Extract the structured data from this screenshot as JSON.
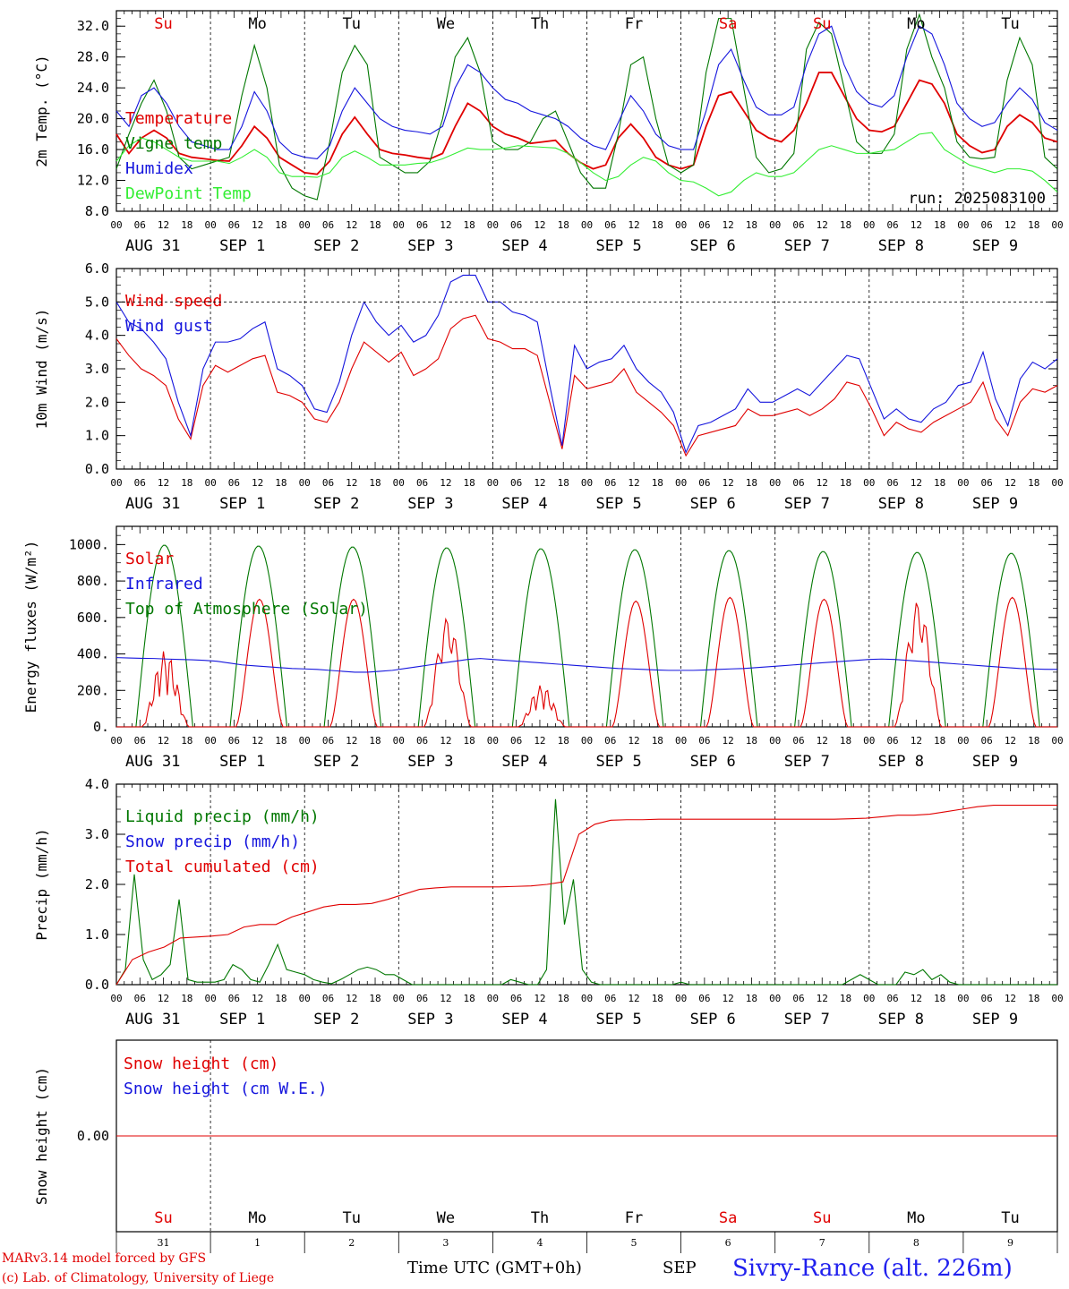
{
  "chart_data": [
    {
      "type": "line",
      "ylabel": "2m Temp. (°C)",
      "ylim": [
        8,
        34
      ],
      "yticks": [
        "8.0",
        "12.0",
        "16.0",
        "20.0",
        "24.0",
        "28.0",
        "32.0"
      ],
      "weekdays": [
        "Su",
        "Mo",
        "Tu",
        "We",
        "Th",
        "Fr",
        "Sa",
        "Su",
        "Mo",
        "Tu"
      ],
      "weekday_colors": [
        "#e00000",
        "#000000",
        "#000000",
        "#000000",
        "#000000",
        "#000000",
        "#e00000",
        "#e00000",
        "#000000",
        "#000000"
      ],
      "annotation": "run: 2025083100",
      "series": [
        {
          "name": "Temperature",
          "color": "#e00000",
          "values": [
            18,
            15.5,
            17.5,
            18.5,
            17.5,
            15.5,
            15,
            14.8,
            14.6,
            14.5,
            16.5,
            19,
            17.5,
            15,
            14,
            13,
            12.8,
            14.5,
            18,
            20.2,
            18,
            16,
            15.5,
            15.3,
            15,
            14.8,
            15.5,
            19,
            22,
            21,
            19,
            18,
            17.5,
            16.8,
            17,
            17.2,
            15.5,
            14.3,
            13.5,
            14,
            17.5,
            19.3,
            17.5,
            15,
            14,
            13.5,
            14,
            19,
            23,
            23.5,
            21,
            18.5,
            17.5,
            17,
            18.5,
            22,
            26,
            26,
            23,
            20,
            18.5,
            18.3,
            19,
            22,
            25,
            24.5,
            22,
            18,
            16.5,
            15.6,
            16,
            19,
            20.5,
            19.5,
            17.5,
            17
          ]
        },
        {
          "name": "Vigne temp",
          "color": "#007700",
          "values": [
            13.5,
            18,
            22,
            25,
            21,
            15,
            13.5,
            14,
            14.5,
            15,
            23,
            29.5,
            24,
            14,
            11,
            10,
            9.5,
            17,
            26,
            29.5,
            27,
            15,
            14,
            13,
            13,
            14.5,
            20,
            28,
            30.5,
            26,
            17,
            16,
            16,
            17,
            20,
            21,
            17,
            13,
            11,
            11,
            18,
            27,
            28,
            20,
            14,
            13,
            14,
            26,
            33,
            33,
            24,
            15,
            13,
            13.5,
            15.5,
            29,
            32.5,
            31,
            24,
            17,
            15.5,
            15.5,
            18,
            29,
            33.5,
            28,
            24,
            17,
            15,
            14.8,
            15,
            25,
            30.5,
            27,
            15,
            13.5
          ]
        },
        {
          "name": "Humidex",
          "color": "#1515dd",
          "values": [
            21,
            19,
            23,
            24,
            22,
            19,
            17,
            16.5,
            16,
            16,
            19,
            23.5,
            21,
            17,
            15.5,
            15,
            14.8,
            16.5,
            21,
            24,
            22,
            20,
            19,
            18.5,
            18.3,
            18,
            19,
            24,
            27,
            26,
            24,
            22.5,
            22,
            21,
            20.5,
            20,
            19,
            17.5,
            16.5,
            16,
            19.5,
            23,
            21,
            18,
            16.5,
            16,
            16,
            21,
            27,
            29,
            25,
            21.5,
            20.5,
            20.5,
            21.5,
            27,
            31,
            32,
            27,
            23.5,
            22,
            21.5,
            23,
            28,
            32,
            31,
            27,
            22,
            20,
            19,
            19.5,
            22,
            24,
            22.5,
            19.5,
            18.5
          ]
        },
        {
          "name": "DewPoint Temp",
          "color": "#33ee33",
          "values": [
            14.5,
            16.5,
            17.5,
            17,
            16,
            15,
            14.5,
            14.5,
            14.5,
            14.2,
            15,
            16,
            15,
            13,
            12.5,
            12.5,
            12.4,
            13,
            15,
            15.8,
            15,
            14,
            14,
            14,
            14.2,
            14.3,
            14.8,
            15.5,
            16.2,
            16,
            16,
            16.2,
            16.5,
            16.4,
            16.3,
            16.2,
            15.5,
            14.3,
            13,
            12,
            12.5,
            14,
            15,
            14.5,
            13,
            12,
            11.8,
            11,
            10,
            10.5,
            12,
            13,
            12.5,
            12.5,
            13,
            14.5,
            16,
            16.5,
            16,
            15.5,
            15.5,
            15.8,
            16,
            17,
            18,
            18.2,
            16,
            15,
            14,
            13.5,
            13,
            13.5,
            13.5,
            13.2,
            12,
            10.5
          ]
        }
      ]
    },
    {
      "type": "line",
      "ylabel": "10m Wind (m/s)",
      "ylim": [
        0,
        6
      ],
      "yticks": [
        "0.0",
        "1.0",
        "2.0",
        "3.0",
        "4.0",
        "5.0",
        "6.0"
      ],
      "xtick_hours": [
        "00",
        "06",
        "12",
        "18"
      ],
      "day_labels": [
        "AUG 31",
        "SEP  1",
        "SEP  2",
        "SEP  3",
        "SEP  4",
        "SEP  5",
        "SEP  6",
        "SEP  7",
        "SEP  8",
        "SEP  9"
      ],
      "series": [
        {
          "name": "Wind speed",
          "color": "#e00000",
          "values": [
            3.9,
            3.4,
            3.0,
            2.8,
            2.5,
            1.5,
            0.9,
            2.5,
            3.1,
            2.9,
            3.1,
            3.3,
            3.4,
            2.3,
            2.2,
            2.0,
            1.5,
            1.4,
            2.0,
            3.0,
            3.8,
            3.5,
            3.2,
            3.5,
            2.8,
            3.0,
            3.3,
            4.2,
            4.5,
            4.6,
            3.9,
            3.8,
            3.6,
            3.6,
            3.4,
            2.0,
            0.6,
            2.8,
            2.4,
            2.5,
            2.6,
            3.0,
            2.3,
            2.0,
            1.7,
            1.3,
            0.4,
            1.0,
            1.1,
            1.2,
            1.3,
            1.8,
            1.6,
            1.6,
            1.7,
            1.8,
            1.6,
            1.8,
            2.1,
            2.6,
            2.5,
            1.8,
            1.0,
            1.4,
            1.2,
            1.1,
            1.4,
            1.6,
            1.8,
            2.0,
            2.6,
            1.5,
            1.0,
            2.0,
            2.4,
            2.3,
            2.5
          ]
        },
        {
          "name": "Wind gust",
          "color": "#1515dd",
          "values": [
            5.0,
            4.4,
            4.2,
            3.8,
            3.3,
            2.0,
            1.0,
            3.0,
            3.8,
            3.8,
            3.9,
            4.2,
            4.4,
            3.0,
            2.8,
            2.5,
            1.8,
            1.7,
            2.6,
            4.0,
            5.0,
            4.4,
            4.0,
            4.3,
            3.8,
            4.0,
            4.6,
            5.6,
            5.8,
            5.8,
            5.0,
            5.0,
            4.7,
            4.6,
            4.4,
            2.5,
            0.7,
            3.7,
            3.0,
            3.2,
            3.3,
            3.7,
            3.0,
            2.6,
            2.3,
            1.7,
            0.5,
            1.3,
            1.4,
            1.6,
            1.8,
            2.4,
            2.0,
            2.0,
            2.2,
            2.4,
            2.2,
            2.6,
            3.0,
            3.4,
            3.3,
            2.4,
            1.5,
            1.8,
            1.5,
            1.4,
            1.8,
            2.0,
            2.5,
            2.6,
            3.5,
            2.1,
            1.3,
            2.7,
            3.2,
            3.0,
            3.3
          ]
        }
      ]
    },
    {
      "type": "line",
      "ylabel": "Energy fluxes (W/m²)",
      "ylim": [
        0,
        1100
      ],
      "yticks": [
        "0.",
        "200.",
        "400.",
        "600.",
        "800.",
        "1000."
      ],
      "series": [
        {
          "name": "Solar",
          "color": "#e00000",
          "values": [
            0,
            0,
            0,
            0,
            100,
            420,
            200,
            300,
            80,
            0,
            0,
            0,
            0,
            0,
            0,
            0,
            200,
            700,
            550,
            150,
            0,
            0,
            0,
            0,
            0,
            0,
            200,
            700,
            500,
            100,
            0,
            0,
            0,
            0,
            0,
            0,
            200,
            600,
            400,
            500,
            200,
            0,
            0,
            0,
            0,
            0,
            0,
            0,
            0,
            0,
            0,
            0,
            0,
            0,
            0,
            0,
            0,
            0,
            0,
            0,
            0,
            0,
            0,
            0,
            0,
            0,
            0,
            0,
            0,
            0,
            0,
            0,
            0,
            0,
            0,
            0
          ]
        },
        {
          "name": "Infrared",
          "color": "#1515dd",
          "values": [
            380,
            378,
            376,
            375,
            372,
            370,
            368,
            365,
            360,
            350,
            340,
            335,
            330,
            325,
            320,
            318,
            315,
            310,
            305,
            300,
            300,
            305,
            310,
            320,
            330,
            340,
            350,
            360,
            370,
            375,
            370,
            365,
            360,
            355,
            350,
            345,
            340,
            335,
            330,
            325,
            320,
            318,
            315,
            312,
            310,
            310,
            310,
            312,
            315,
            318,
            320,
            325,
            330,
            335,
            340,
            345,
            350,
            355,
            360,
            365,
            370,
            372,
            370,
            365,
            360,
            355,
            350,
            345,
            340,
            335,
            330,
            325,
            320,
            318,
            316,
            315
          ]
        },
        {
          "name": "Top of Atmosphere (Solar)",
          "color": "#007700",
          "values": [
            0,
            0,
            0,
            0,
            0,
            0,
            0,
            0,
            0,
            0,
            0,
            0,
            0,
            0,
            0,
            0,
            0,
            0,
            0,
            0,
            0,
            0,
            0,
            0,
            0,
            0,
            0,
            0,
            0,
            0,
            0,
            0,
            0,
            0,
            0,
            0,
            0,
            0,
            0,
            0,
            0,
            0,
            0,
            0,
            0,
            0,
            0,
            0,
            0,
            0,
            0,
            0,
            0,
            0,
            0,
            0,
            0,
            0,
            0,
            0,
            0,
            0,
            0,
            0,
            0,
            0,
            0,
            0,
            0,
            0,
            0,
            0,
            0,
            0,
            0,
            0
          ]
        }
      ]
    },
    {
      "type": "line",
      "ylabel": "Precip (mm/h)",
      "ylim": [
        0,
        4
      ],
      "yticks": [
        "0.0",
        "1.0",
        "2.0",
        "3.0",
        "4.0"
      ],
      "series": [
        {
          "name": "Liquid precip (mm/h)",
          "color": "#007700",
          "values": [
            0,
            0.3,
            2.2,
            0.5,
            0.1,
            0.2,
            0.4,
            1.7,
            0.1,
            0.05,
            0.05,
            0.05,
            0.1,
            0.4,
            0.3,
            0.1,
            0.05,
            0.4,
            0.8,
            0.3,
            0.25,
            0.2,
            0.1,
            0.05,
            0.02,
            0.1,
            0.2,
            0.3,
            0.35,
            0.3,
            0.2,
            0.2,
            0.1,
            0,
            0,
            0,
            0,
            0,
            0,
            0,
            0,
            0,
            0,
            0,
            0.1,
            0.05,
            0,
            0,
            0.3,
            3.7,
            1.2,
            2.1,
            0.3,
            0.05,
            0,
            0,
            0,
            0,
            0,
            0,
            0,
            0,
            0,
            0.05,
            0,
            0,
            0,
            0,
            0,
            0,
            0,
            0,
            0,
            0,
            0,
            0,
            0,
            0,
            0,
            0,
            0,
            0,
            0.1,
            0.2,
            0.1,
            0,
            0,
            0,
            0.25,
            0.2,
            0.3,
            0.1,
            0.2,
            0.05,
            0,
            0,
            0,
            0,
            0,
            0,
            0,
            0,
            0,
            0,
            0,
            0
          ]
        },
        {
          "name": "Snow precip (mm/h)",
          "color": "#1515dd",
          "values": []
        },
        {
          "name": "Total cumulated (cm)",
          "color": "#e00000",
          "values": [
            0,
            0.5,
            0.65,
            0.75,
            0.93,
            0.95,
            0.97,
            1.0,
            1.15,
            1.2,
            1.2,
            1.35,
            1.45,
            1.55,
            1.6,
            1.6,
            1.62,
            1.7,
            1.8,
            1.9,
            1.93,
            1.95,
            1.95,
            1.95,
            1.95,
            1.96,
            1.97,
            2.0,
            2.05,
            3.0,
            3.2,
            3.28,
            3.29,
            3.29,
            3.3,
            3.3,
            3.3,
            3.3,
            3.3,
            3.3,
            3.3,
            3.3,
            3.3,
            3.3,
            3.3,
            3.3,
            3.31,
            3.32,
            3.35,
            3.38,
            3.38,
            3.4,
            3.45,
            3.5,
            3.55,
            3.58,
            3.58,
            3.58,
            3.58,
            3.58
          ]
        }
      ]
    },
    {
      "type": "line",
      "ylabel": "Snow height (cm)",
      "yticks": [
        "0.00"
      ],
      "day_numbers": [
        "31",
        "1",
        "2",
        "3",
        "4",
        "5",
        "6",
        "7",
        "8",
        "9"
      ],
      "series": [
        {
          "name": "Snow height (cm)",
          "color": "#e00000",
          "values": [
            0,
            0
          ]
        },
        {
          "name": "Snow height (cm W.E.)",
          "color": "#1515dd",
          "values": []
        }
      ]
    }
  ],
  "footer": {
    "model": "MARv3.14 model forced by GFS",
    "lab": "(c) Lab. of Climatology, University of Liege",
    "time_label": "Time UTC (GMT+0h)",
    "month_label": "SEP",
    "site": "Sivry-Rance (alt. 226m)"
  }
}
